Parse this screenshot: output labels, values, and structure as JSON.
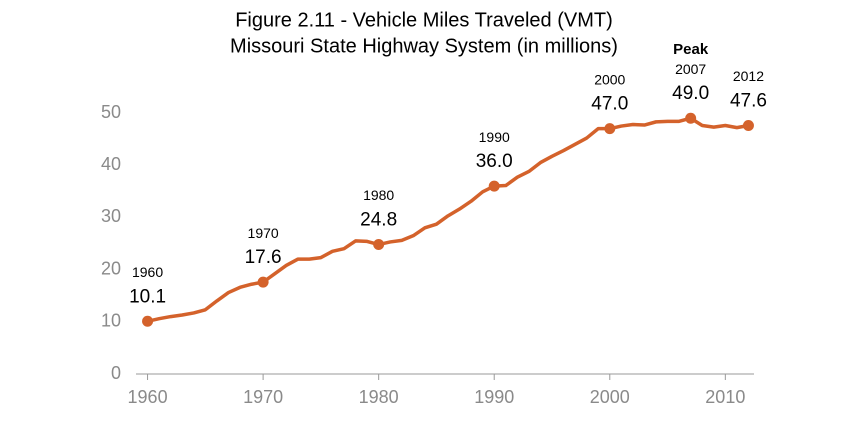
{
  "chart_data": {
    "type": "line",
    "title": "Figure 2.11 - Vehicle Miles Traveled (VMT)",
    "subtitle": "Missouri State Highway System (in millions)",
    "x": [
      1960,
      1961,
      1962,
      1963,
      1964,
      1965,
      1966,
      1967,
      1968,
      1969,
      1970,
      1971,
      1972,
      1973,
      1974,
      1975,
      1976,
      1977,
      1978,
      1979,
      1980,
      1981,
      1982,
      1983,
      1984,
      1985,
      1986,
      1987,
      1988,
      1989,
      1990,
      1991,
      1992,
      1993,
      1994,
      1995,
      1996,
      1997,
      1998,
      1999,
      2000,
      2001,
      2002,
      2003,
      2004,
      2005,
      2006,
      2007,
      2008,
      2009,
      2010,
      2011,
      2012
    ],
    "values": [
      10.1,
      10.6,
      11.0,
      11.3,
      11.7,
      12.3,
      14.0,
      15.6,
      16.6,
      17.2,
      17.6,
      19.2,
      20.8,
      22.0,
      22.0,
      22.3,
      23.5,
      24.0,
      25.5,
      25.4,
      24.8,
      25.3,
      25.6,
      26.5,
      28.0,
      28.7,
      30.3,
      31.6,
      33.1,
      34.9,
      36.0,
      36.1,
      37.7,
      38.8,
      40.5,
      41.7,
      42.8,
      44.0,
      45.2,
      47.0,
      47.0,
      47.5,
      47.8,
      47.7,
      48.3,
      48.4,
      48.4,
      49.0,
      47.6,
      47.3,
      47.6,
      47.2,
      47.6
    ],
    "value_labels": [
      "10.1",
      null,
      null,
      null,
      null,
      null,
      null,
      null,
      null,
      null,
      "17.6",
      null,
      null,
      null,
      null,
      null,
      null,
      null,
      null,
      null,
      "24.8",
      null,
      null,
      null,
      null,
      null,
      null,
      null,
      null,
      null,
      "36.0",
      null,
      null,
      null,
      null,
      null,
      null,
      null,
      null,
      null,
      "47.0",
      null,
      null,
      null,
      null,
      null,
      null,
      "49.0",
      null,
      null,
      null,
      null,
      "47.6"
    ],
    "point_labels": [
      "1960",
      null,
      null,
      null,
      null,
      null,
      null,
      null,
      null,
      null,
      "1970",
      null,
      null,
      null,
      null,
      null,
      null,
      null,
      null,
      null,
      "1980",
      null,
      null,
      null,
      null,
      null,
      null,
      null,
      null,
      null,
      "1990",
      null,
      null,
      null,
      null,
      null,
      null,
      null,
      null,
      null,
      "2000",
      null,
      null,
      null,
      null,
      null,
      null,
      "2007",
      null,
      null,
      null,
      null,
      "2012"
    ],
    "annotations": [
      {
        "x": 2007,
        "text": "Peak"
      }
    ],
    "color": "#d4622b",
    "xlim": [
      1959,
      2013
    ],
    "xticks": [
      1960,
      1970,
      1980,
      1990,
      2000,
      2010
    ],
    "ylim": [
      0,
      50
    ],
    "yticks": [
      0,
      10,
      20,
      30,
      40,
      50
    ],
    "grid": false
  }
}
